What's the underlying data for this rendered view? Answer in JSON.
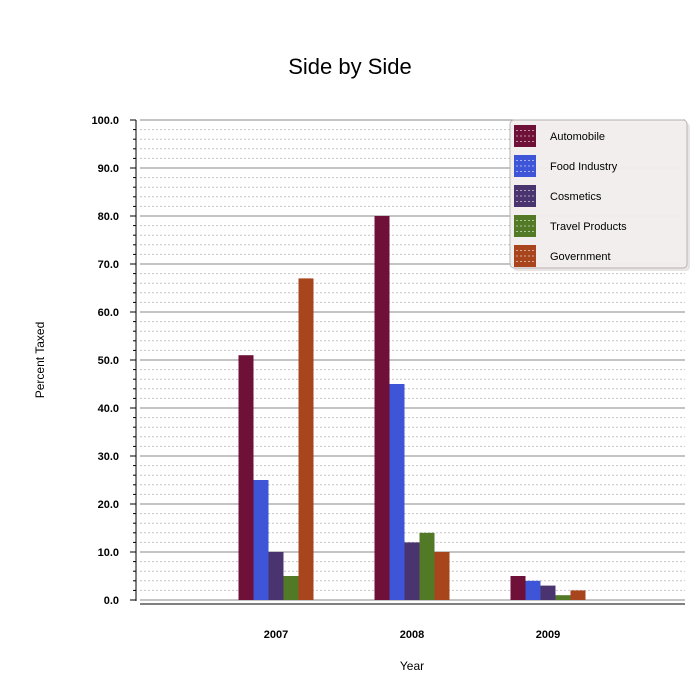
{
  "chart_data": {
    "type": "bar",
    "title": "Side by Side",
    "xlabel": "Year",
    "ylabel": "Percent Taxed",
    "categories": [
      "2007",
      "2008",
      "2009"
    ],
    "ylim": [
      0,
      100
    ],
    "yticks": [
      "0.0",
      "10.0",
      "20.0",
      "30.0",
      "40.0",
      "50.0",
      "60.0",
      "70.0",
      "80.0",
      "90.0",
      "100.0"
    ],
    "grid": true,
    "legend_position": "top-right",
    "series": [
      {
        "name": "Automobile",
        "color": "#6e1038",
        "values": [
          51,
          80,
          5
        ]
      },
      {
        "name": "Food Industry",
        "color": "#3d55d6",
        "values": [
          25,
          45,
          4
        ]
      },
      {
        "name": "Cosmetics",
        "color": "#4a3470",
        "values": [
          10,
          12,
          3
        ]
      },
      {
        "name": "Travel Products",
        "color": "#527a26",
        "values": [
          5,
          14,
          1
        ]
      },
      {
        "name": "Government",
        "color": "#a9451c",
        "values": [
          67,
          10,
          2
        ]
      }
    ]
  }
}
